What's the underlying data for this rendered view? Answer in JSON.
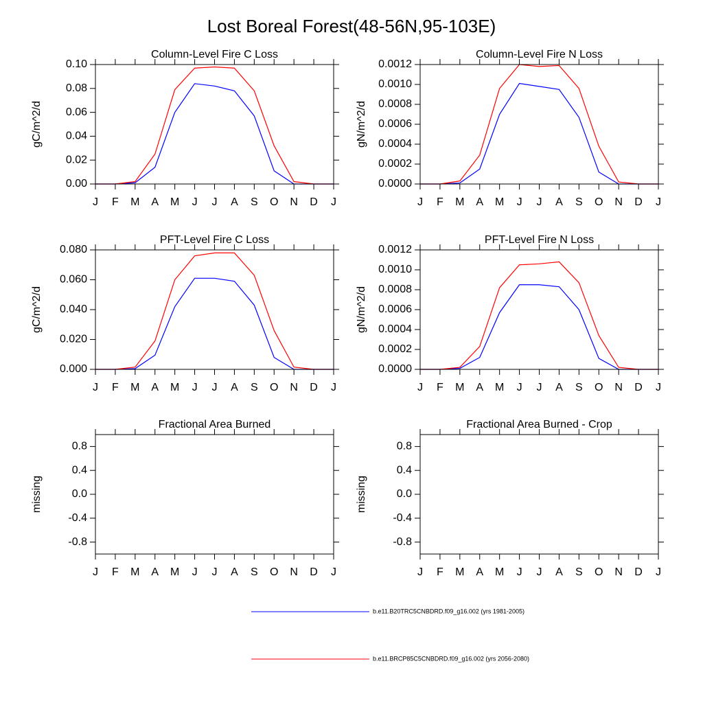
{
  "title": "Lost Boreal Forest(48-56N,95-103E)",
  "legend": [
    {
      "name": "b.e11.B20TRC5CNBDRD.f09_g16.002 (yrs 1981-2005)",
      "color": "#0000ff"
    },
    {
      "name": "b.e11.BRCP85C5CNBDRD.f09_g16.002 (yrs 2056-2080)",
      "color": "#ff0000"
    }
  ],
  "chart_data": [
    {
      "type": "line",
      "title": "Column-Level Fire C Loss",
      "y_label": "gC/m^2/d",
      "categories": [
        "J",
        "F",
        "M",
        "A",
        "M",
        "J",
        "J",
        "A",
        "S",
        "O",
        "N",
        "D",
        "J"
      ],
      "ylim": [
        0,
        0.1
      ],
      "yticks": [
        {
          "value": 0,
          "label": "0.00"
        },
        {
          "value": 0.02,
          "label": "0.02"
        },
        {
          "value": 0.04,
          "label": "0.04"
        },
        {
          "value": 0.06,
          "label": "0.06"
        },
        {
          "value": 0.08,
          "label": "0.08"
        },
        {
          "value": 0.1,
          "label": "0.10"
        }
      ],
      "series": [
        {
          "values": [
            0,
            0,
            0.001,
            0.014,
            0.06,
            0.084,
            0.082,
            0.078,
            0.057,
            0.011,
            0,
            0,
            0
          ]
        },
        {
          "values": [
            0,
            0,
            0.002,
            0.025,
            0.079,
            0.097,
            0.098,
            0.097,
            0.078,
            0.032,
            0.002,
            0,
            0
          ]
        }
      ]
    },
    {
      "type": "line",
      "title": "Column-Level Fire N Loss",
      "y_label": "gN/m^2/d",
      "categories": [
        "J",
        "F",
        "M",
        "A",
        "M",
        "J",
        "J",
        "A",
        "S",
        "O",
        "N",
        "D",
        "J"
      ],
      "ylim": [
        0,
        0.0012
      ],
      "yticks": [
        {
          "value": 0,
          "label": "0.0000"
        },
        {
          "value": 0.0002,
          "label": "0.0002"
        },
        {
          "value": 0.0004,
          "label": "0.0004"
        },
        {
          "value": 0.0006,
          "label": "0.0006"
        },
        {
          "value": 0.0008,
          "label": "0.0008"
        },
        {
          "value": 0.001,
          "label": "0.0010"
        },
        {
          "value": 0.0012,
          "label": "0.0012"
        }
      ],
      "series": [
        {
          "values": [
            0,
            0,
            1e-05,
            0.00015,
            0.0007,
            0.00101,
            0.00098,
            0.00095,
            0.00067,
            0.00012,
            0,
            0,
            0
          ]
        },
        {
          "values": [
            0,
            0,
            3e-05,
            0.00029,
            0.00096,
            0.0012,
            0.00118,
            0.00119,
            0.00096,
            0.00038,
            2e-05,
            0,
            0
          ]
        }
      ]
    },
    {
      "type": "line",
      "title": "PFT-Level Fire C Loss",
      "y_label": "gC/m^2/d",
      "categories": [
        "J",
        "F",
        "M",
        "A",
        "M",
        "J",
        "J",
        "A",
        "S",
        "O",
        "N",
        "D",
        "J"
      ],
      "ylim": [
        0,
        0.08
      ],
      "yticks": [
        {
          "value": 0,
          "label": "0.000"
        },
        {
          "value": 0.02,
          "label": "0.020"
        },
        {
          "value": 0.04,
          "label": "0.040"
        },
        {
          "value": 0.06,
          "label": "0.060"
        },
        {
          "value": 0.08,
          "label": "0.080"
        }
      ],
      "series": [
        {
          "values": [
            0,
            0,
            0.0005,
            0.0095,
            0.042,
            0.061,
            0.061,
            0.059,
            0.043,
            0.008,
            0,
            0,
            0
          ]
        },
        {
          "values": [
            0,
            0,
            0.0015,
            0.019,
            0.06,
            0.076,
            0.078,
            0.078,
            0.063,
            0.026,
            0.0015,
            0,
            0
          ]
        }
      ]
    },
    {
      "type": "line",
      "title": "PFT-Level Fire N Loss",
      "y_label": "gN/m^2/d",
      "categories": [
        "J",
        "F",
        "M",
        "A",
        "M",
        "J",
        "J",
        "A",
        "S",
        "O",
        "N",
        "D",
        "J"
      ],
      "ylim": [
        0,
        0.0012
      ],
      "yticks": [
        {
          "value": 0,
          "label": "0.0000"
        },
        {
          "value": 0.0002,
          "label": "0.0002"
        },
        {
          "value": 0.0004,
          "label": "0.0004"
        },
        {
          "value": 0.0006,
          "label": "0.0006"
        },
        {
          "value": 0.0008,
          "label": "0.0008"
        },
        {
          "value": 0.001,
          "label": "0.0010"
        },
        {
          "value": 0.0012,
          "label": "0.0012"
        }
      ],
      "series": [
        {
          "values": [
            0,
            0,
            1e-05,
            0.00012,
            0.00057,
            0.00085,
            0.00085,
            0.00083,
            0.0006,
            0.00011,
            0,
            0,
            0
          ]
        },
        {
          "values": [
            0,
            0,
            2e-05,
            0.00023,
            0.00082,
            0.00105,
            0.00106,
            0.00108,
            0.00087,
            0.00034,
            2e-05,
            0,
            0
          ]
        }
      ]
    },
    {
      "type": "line",
      "title": "Fractional Area Burned",
      "y_label": "missing",
      "categories": [
        "J",
        "F",
        "M",
        "A",
        "M",
        "J",
        "J",
        "A",
        "S",
        "O",
        "N",
        "D",
        "J"
      ],
      "ylim": [
        -1,
        1
      ],
      "yticks": [
        0.8,
        0.4,
        {
          "value": 0,
          "label": "0.0"
        },
        -0.4,
        -0.8
      ],
      "series": []
    },
    {
      "type": "line",
      "title": "Fractional Area Burned - Crop",
      "y_label": "missing",
      "categories": [
        "J",
        "F",
        "M",
        "A",
        "M",
        "J",
        "J",
        "A",
        "S",
        "O",
        "N",
        "D",
        "J"
      ],
      "ylim": [
        -1,
        1
      ],
      "yticks": [
        0.8,
        0.4,
        {
          "value": 0,
          "label": "0.0"
        },
        -0.4,
        -0.8
      ],
      "series": []
    }
  ]
}
